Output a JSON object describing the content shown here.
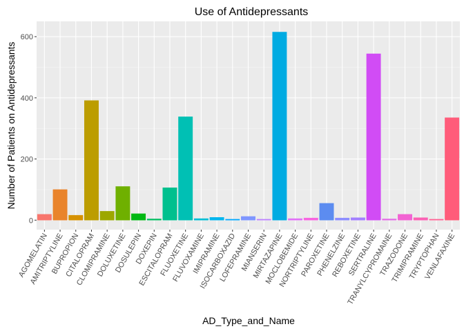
{
  "chart_data": {
    "type": "bar",
    "title": "Use of Antidepressants",
    "xlabel": "AD_Type_and_Name",
    "ylabel": "Number of Patients on Antidepressants",
    "ylim": [
      -31,
      650
    ],
    "yticks": [
      0,
      200,
      400,
      600
    ],
    "grid": true,
    "legend": "none",
    "categories": [
      "AGOMELATIN",
      "AMITRIPTYLINE",
      "BUPROPION",
      "CITALOPRAM",
      "CLOMIPRAMINE",
      "DOLUXETINE",
      "DOSULEPIN",
      "DOXEPIN",
      "ESCITALOPRAM",
      "FLUOXETINE",
      "FLUVOXAMINE",
      "IMIPRAMINE",
      "ISOCARBOXAZID",
      "LOFEPRAMINE",
      "MIANSERIN",
      "MIRTAZAPINE",
      "MOCLOBEMIDE",
      "NORTRIPTYLINE",
      "PAROXETINE",
      "PHENELZINE",
      "REBOXETINE",
      "SERTRALINE",
      "TRANYLCYPROMAINE",
      "TRAZODONE",
      "TRIMIPRAMINE",
      "TRYPTOPHAN",
      "VENLAFAXINE"
    ],
    "values": [
      19,
      100,
      16,
      391,
      29,
      110,
      21,
      4,
      106,
      338,
      5,
      9,
      3,
      12,
      3,
      615,
      5,
      7,
      55,
      7,
      8,
      544,
      4,
      19,
      8,
      3,
      335
    ],
    "colors": [
      "#F8766D",
      "#E9842C",
      "#D69100",
      "#BC9D00",
      "#9CA700",
      "#6FB000",
      "#00B813",
      "#00BD61",
      "#00C08E",
      "#00C0B4",
      "#00BDD4",
      "#00B5EE",
      "#00A7FF",
      "#7F96FF",
      "#BC81FF",
      "#00ABE2",
      "#E16FF7",
      "#F863DF",
      "#5C8CF0",
      "#8B8CFF",
      "#A27FFF",
      "#D14CF5",
      "#E36CE5",
      "#F263D3",
      "#FB61B4",
      "#FF6193",
      "#FF5C7A"
    ]
  }
}
